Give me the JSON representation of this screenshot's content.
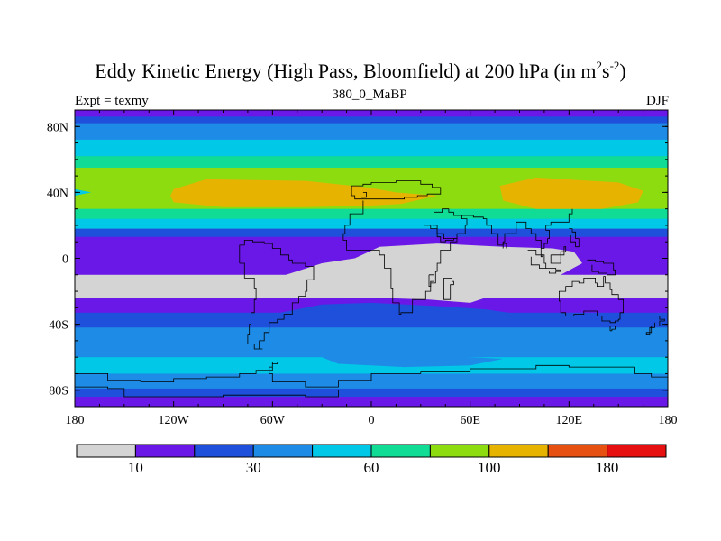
{
  "title": {
    "main": "Eddy Kinetic Energy (High Pass, Bloomfield) at 200 hPa (in m",
    "sup1": "2",
    "unit_s": "s",
    "sup2": "-2",
    "close": ")"
  },
  "subtitle": {
    "left": "Expt = texmy",
    "center": "380_0_MaBP",
    "right": "DJF"
  },
  "colors": {
    "level_fills": [
      "#d4d4d4",
      "#6a18e8",
      "#1e50dc",
      "#1e8ce6",
      "#00c8e6",
      "#10dc96",
      "#8cdc10",
      "#e6b400",
      "#e65010",
      "#e61010"
    ],
    "coastline": "#000000"
  },
  "chart_data": {
    "type": "heatmap",
    "projection": "cylindrical-equidistant",
    "field": "Eddy Kinetic Energy at 200 hPa",
    "season": "DJF",
    "lon_range": [
      -180,
      180
    ],
    "lat_range": [
      -90,
      90
    ],
    "x_ticks": [
      {
        "lon": -180,
        "label": "180"
      },
      {
        "lon": -120,
        "label": "120W"
      },
      {
        "lon": -60,
        "label": "60W"
      },
      {
        "lon": 0,
        "label": "0"
      },
      {
        "lon": 60,
        "label": "60E"
      },
      {
        "lon": 120,
        "label": "120E"
      },
      {
        "lon": 180,
        "label": "180"
      }
    ],
    "y_ticks": [
      {
        "lat": 80,
        "label": "80N"
      },
      {
        "lat": 40,
        "label": "40N"
      },
      {
        "lat": 0,
        "label": "0"
      },
      {
        "lat": -40,
        "label": "40S"
      },
      {
        "lat": -80,
        "label": "80S"
      }
    ],
    "colorbar": {
      "labels": [
        {
          "boundary": 1,
          "label": "10"
        },
        {
          "boundary": 3,
          "label": "30"
        },
        {
          "boundary": 5,
          "label": "60"
        },
        {
          "boundary": 7,
          "label": "100"
        },
        {
          "boundary": 9,
          "label": "180"
        }
      ]
    },
    "bands": [
      {
        "lat_top": 90,
        "lat_bottom": 86,
        "level": 1
      },
      {
        "lat_top": 86,
        "lat_bottom": 82,
        "level": 2
      },
      {
        "lat_top": 82,
        "lat_bottom": 72,
        "level": 3
      },
      {
        "lat_top": 72,
        "lat_bottom": 62,
        "level": 4
      },
      {
        "lat_top": 62,
        "lat_bottom": 55,
        "level": 5
      },
      {
        "lat_top": 55,
        "lat_bottom": 48,
        "level": 6
      },
      {
        "lat_top": 48,
        "lat_bottom": 30,
        "level": 6
      },
      {
        "lat_top": 30,
        "lat_bottom": 24,
        "level": 5
      },
      {
        "lat_top": 24,
        "lat_bottom": 18,
        "level": 4
      },
      {
        "lat_top": 18,
        "lat_bottom": 13,
        "level": 2
      },
      {
        "lat_top": 13,
        "lat_bottom": -10,
        "level": 1
      },
      {
        "lat_top": -10,
        "lat_bottom": -24,
        "level": 0
      },
      {
        "lat_top": -24,
        "lat_bottom": -33,
        "level": 1
      },
      {
        "lat_top": -33,
        "lat_bottom": -42,
        "level": 2
      },
      {
        "lat_top": -42,
        "lat_bottom": -60,
        "level": 3
      },
      {
        "lat_top": -60,
        "lat_bottom": -70,
        "level": 4
      },
      {
        "lat_top": -70,
        "lat_bottom": -79,
        "level": 3
      },
      {
        "lat_top": -79,
        "lat_bottom": -84,
        "level": 2
      },
      {
        "lat_top": -84,
        "lat_bottom": -90,
        "level": 1
      }
    ],
    "regions": [
      {
        "level": 7,
        "polygon": [
          [
            -120,
            42
          ],
          [
            -100,
            48
          ],
          [
            -40,
            47
          ],
          [
            -2,
            43
          ],
          [
            15,
            40
          ],
          [
            40,
            38
          ],
          [
            18,
            33
          ],
          [
            0,
            32
          ],
          [
            -40,
            31
          ],
          [
            -90,
            31
          ],
          [
            -120,
            34
          ],
          [
            -122,
            38
          ]
        ]
      },
      {
        "level": 7,
        "polygon": [
          [
            78,
            44
          ],
          [
            100,
            49
          ],
          [
            150,
            46
          ],
          [
            165,
            41
          ],
          [
            162,
            34
          ],
          [
            140,
            30
          ],
          [
            100,
            30
          ],
          [
            80,
            35
          ]
        ]
      },
      {
        "level": 4,
        "polygon": [
          [
            -180,
            42
          ],
          [
            -170,
            40
          ],
          [
            -180,
            38
          ]
        ]
      },
      {
        "level": 0,
        "polygon": [
          [
            -55,
            -11
          ],
          [
            -30,
            -3
          ],
          [
            -10,
            0
          ],
          [
            5,
            7
          ],
          [
            40,
            9
          ],
          [
            80,
            7
          ],
          [
            110,
            6
          ],
          [
            123,
            4
          ],
          [
            128,
            -3
          ],
          [
            115,
            -10
          ],
          [
            100,
            -17
          ],
          [
            75,
            -22
          ],
          [
            60,
            -27
          ],
          [
            35,
            -25
          ],
          [
            5,
            -24
          ],
          [
            -25,
            -23
          ],
          [
            -55,
            -18
          ],
          [
            -58,
            -14
          ]
        ]
      },
      {
        "level": 2,
        "polygon": [
          [
            -55,
            -33
          ],
          [
            -30,
            -28
          ],
          [
            0,
            -27
          ],
          [
            40,
            -29
          ],
          [
            70,
            -31
          ],
          [
            90,
            -34
          ],
          [
            70,
            -37
          ],
          [
            30,
            -38
          ],
          [
            0,
            -37
          ],
          [
            -30,
            -37
          ]
        ]
      },
      {
        "level": 3,
        "polygon": [
          [
            -30,
            -60
          ],
          [
            -10,
            -57
          ],
          [
            40,
            -59
          ],
          [
            80,
            -61
          ],
          [
            60,
            -65
          ],
          [
            20,
            -66
          ],
          [
            -20,
            -64
          ]
        ]
      }
    ],
    "coastlines": [
      [
        [
          -12,
          44
        ],
        [
          -5,
          44
        ],
        [
          -5,
          45
        ],
        [
          0,
          45
        ],
        [
          0,
          46
        ],
        [
          10,
          46
        ],
        [
          15,
          47
        ],
        [
          25,
          47
        ],
        [
          30,
          45
        ],
        [
          37,
          43
        ],
        [
          42,
          42
        ],
        [
          42,
          39
        ],
        [
          34,
          38
        ],
        [
          28,
          37
        ],
        [
          20,
          36
        ],
        [
          10,
          36
        ],
        [
          0,
          36
        ],
        [
          -8,
          36
        ],
        [
          -10,
          38
        ],
        [
          -12,
          40
        ],
        [
          -12,
          44
        ]
      ],
      [
        [
          -5,
          40
        ],
        [
          -3,
          39
        ],
        [
          -3,
          37
        ],
        [
          -6,
          37
        ]
      ],
      [
        [
          32,
          20
        ],
        [
          36,
          18
        ],
        [
          40,
          13
        ],
        [
          42,
          10
        ],
        [
          45,
          11
        ],
        [
          50,
          12
        ],
        [
          52,
          10
        ],
        [
          48,
          5
        ],
        [
          42,
          -3
        ],
        [
          40,
          -8
        ],
        [
          39,
          -15
        ],
        [
          36,
          -20
        ],
        [
          33,
          -25
        ],
        [
          25,
          -33
        ],
        [
          18,
          -34
        ],
        [
          17,
          -27
        ],
        [
          13,
          -18
        ],
        [
          12,
          -6
        ],
        [
          8,
          2
        ],
        [
          5,
          5
        ],
        [
          -2,
          5
        ],
        [
          -8,
          5
        ],
        [
          -15,
          11
        ],
        [
          -17,
          15
        ],
        [
          -16,
          20
        ],
        [
          -13,
          27
        ],
        [
          -5,
          35
        ]
      ],
      [
        [
          35,
          -10
        ],
        [
          38,
          -14
        ],
        [
          36,
          -17
        ],
        [
          35,
          -10
        ]
      ],
      [
        [
          37,
          20
        ],
        [
          40,
          15
        ],
        [
          44,
          12
        ],
        [
          52,
          15
        ],
        [
          57,
          20
        ],
        [
          58,
          24
        ],
        [
          55,
          26
        ],
        [
          50,
          28
        ],
        [
          47,
          30
        ],
        [
          43,
          28
        ],
        [
          38,
          24
        ]
      ],
      [
        [
          55,
          26
        ],
        [
          62,
          25
        ],
        [
          68,
          24
        ],
        [
          70,
          20
        ],
        [
          73,
          15
        ],
        [
          77,
          8
        ],
        [
          80,
          10
        ],
        [
          81,
          15
        ],
        [
          88,
          22
        ],
        [
          90,
          22
        ],
        [
          94,
          18
        ],
        [
          97,
          15
        ],
        [
          100,
          11
        ],
        [
          103,
          2
        ],
        [
          104,
          1
        ],
        [
          103,
          6
        ],
        [
          105,
          9
        ],
        [
          107,
          12
        ],
        [
          108,
          17
        ],
        [
          106,
          20
        ],
        [
          109,
          22
        ],
        [
          114,
          22
        ],
        [
          120,
          27
        ],
        [
          122,
          30
        ]
      ],
      [
        [
          82,
          6
        ],
        [
          82,
          9
        ],
        [
          80,
          9
        ],
        [
          80,
          6
        ]
      ],
      [
        [
          95,
          5
        ],
        [
          100,
          2
        ],
        [
          105,
          -3
        ],
        [
          106,
          -6
        ],
        [
          102,
          -4
        ],
        [
          97,
          1
        ]
      ],
      [
        [
          106,
          -6
        ],
        [
          112,
          -7
        ],
        [
          115,
          -8
        ],
        [
          112,
          -9
        ],
        [
          108,
          -8
        ]
      ],
      [
        [
          109,
          2
        ],
        [
          117,
          7
        ],
        [
          118,
          4
        ],
        [
          115,
          -3
        ],
        [
          110,
          -3
        ],
        [
          109,
          2
        ]
      ],
      [
        [
          120,
          18
        ],
        [
          122,
          16
        ],
        [
          124,
          12
        ],
        [
          126,
          7
        ],
        [
          124,
          10
        ],
        [
          121,
          14
        ]
      ],
      [
        [
          131,
          -1
        ],
        [
          136,
          -2
        ],
        [
          141,
          -3
        ],
        [
          147,
          -7
        ],
        [
          148,
          -10
        ],
        [
          143,
          -9
        ],
        [
          138,
          -8
        ],
        [
          134,
          -4
        ]
      ],
      [
        [
          114,
          -22
        ],
        [
          114,
          -26
        ],
        [
          115,
          -33
        ],
        [
          118,
          -35
        ],
        [
          123,
          -34
        ],
        [
          129,
          -32
        ],
        [
          132,
          -32
        ],
        [
          137,
          -35
        ],
        [
          140,
          -38
        ],
        [
          145,
          -39
        ],
        [
          148,
          -38
        ],
        [
          150,
          -37
        ],
        [
          151,
          -33
        ],
        [
          153,
          -28
        ],
        [
          153,
          -25
        ],
        [
          150,
          -22
        ],
        [
          146,
          -19
        ],
        [
          145,
          -15
        ],
        [
          142,
          -11
        ],
        [
          141,
          -13
        ],
        [
          141,
          -17
        ],
        [
          137,
          -15
        ],
        [
          136,
          -12
        ],
        [
          131,
          -12
        ],
        [
          129,
          -15
        ],
        [
          126,
          -14
        ],
        [
          122,
          -17
        ],
        [
          118,
          -20
        ],
        [
          114,
          -22
        ]
      ],
      [
        [
          145,
          -41
        ],
        [
          148,
          -41
        ],
        [
          148,
          -43
        ],
        [
          146,
          -44
        ],
        [
          145,
          -41
        ]
      ],
      [
        [
          172,
          -35
        ],
        [
          175,
          -37
        ],
        [
          178,
          -38
        ],
        [
          175,
          -41
        ],
        [
          172,
          -41
        ],
        [
          170,
          -45
        ],
        [
          167,
          -46
        ],
        [
          169,
          -42
        ],
        [
          172,
          -39
        ]
      ],
      [
        [
          44,
          -12
        ],
        [
          49,
          -14
        ],
        [
          50,
          -16
        ],
        [
          48,
          -25
        ],
        [
          45,
          -25
        ],
        [
          44,
          -20
        ],
        [
          44,
          -12
        ]
      ],
      [
        [
          -80,
          -3
        ],
        [
          -77,
          -12
        ],
        [
          -71,
          -18
        ],
        [
          -70,
          -25
        ],
        [
          -71,
          -33
        ],
        [
          -73,
          -40
        ],
        [
          -74,
          -46
        ],
        [
          -75,
          -52
        ],
        [
          -71,
          -55
        ],
        [
          -66,
          -55
        ],
        [
          -68,
          -50
        ],
        [
          -65,
          -45
        ],
        [
          -62,
          -39
        ],
        [
          -57,
          -37
        ],
        [
          -53,
          -34
        ],
        [
          -48,
          -27
        ],
        [
          -44,
          -23
        ],
        [
          -40,
          -20
        ],
        [
          -39,
          -13
        ],
        [
          -35,
          -8
        ],
        [
          -35,
          -5
        ],
        [
          -40,
          -3
        ],
        [
          -48,
          -1
        ],
        [
          -50,
          2
        ],
        [
          -55,
          6
        ],
        [
          -60,
          9
        ],
        [
          -65,
          10
        ],
        [
          -72,
          11
        ],
        [
          -77,
          8
        ],
        [
          -80,
          2
        ],
        [
          -80,
          -3
        ]
      ],
      [
        [
          -180,
          -70
        ],
        [
          -160,
          -74
        ],
        [
          -140,
          -75
        ],
        [
          -120,
          -73
        ],
        [
          -100,
          -72
        ],
        [
          -80,
          -70
        ],
        [
          -70,
          -68
        ],
        [
          -60,
          -64
        ],
        [
          -57,
          -63
        ],
        [
          -60,
          -66
        ],
        [
          -62,
          -70
        ],
        [
          -60,
          -75
        ],
        [
          -40,
          -78
        ],
        [
          -20,
          -74
        ],
        [
          0,
          -70
        ],
        [
          30,
          -69
        ],
        [
          60,
          -67
        ],
        [
          80,
          -67
        ],
        [
          100,
          -65
        ],
        [
          120,
          -66
        ],
        [
          140,
          -66
        ],
        [
          160,
          -70
        ],
        [
          170,
          -72
        ],
        [
          180,
          -70
        ]
      ],
      [
        [
          -180,
          -78
        ],
        [
          -160,
          -79
        ],
        [
          -150,
          -84
        ],
        [
          -120,
          -84
        ],
        [
          -90,
          -83
        ],
        [
          -70,
          -83
        ],
        [
          -40,
          -84
        ],
        [
          -20,
          -80
        ]
      ]
    ]
  }
}
